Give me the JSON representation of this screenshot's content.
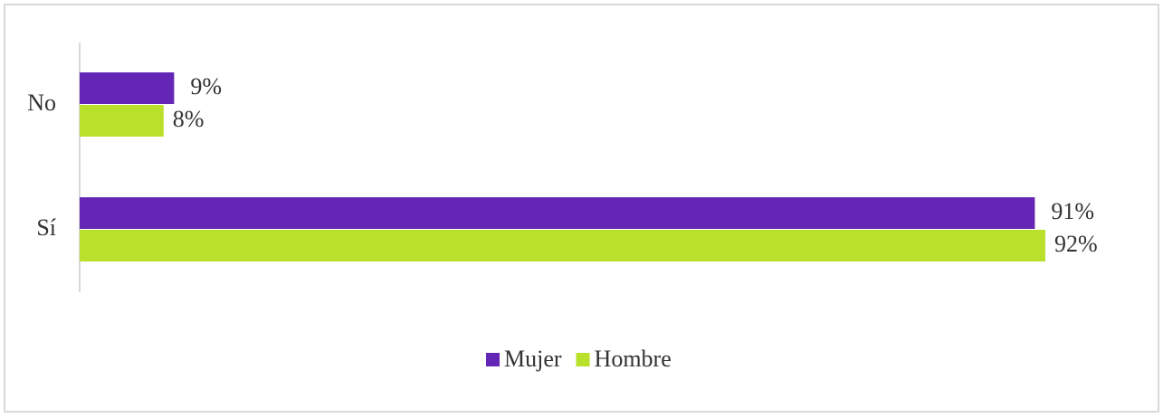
{
  "chart_data": {
    "type": "bar",
    "orientation": "horizontal",
    "categories": [
      "No",
      "Sí"
    ],
    "series": [
      {
        "name": "Mujer",
        "color": "#6427b5",
        "values": [
          9,
          91
        ],
        "value_labels": [
          "9%",
          "91%"
        ]
      },
      {
        "name": "Hombre",
        "color": "#b9e02a",
        "values": [
          8,
          92
        ],
        "value_labels": [
          "8%",
          "92%"
        ]
      }
    ],
    "legend": "bottom"
  }
}
